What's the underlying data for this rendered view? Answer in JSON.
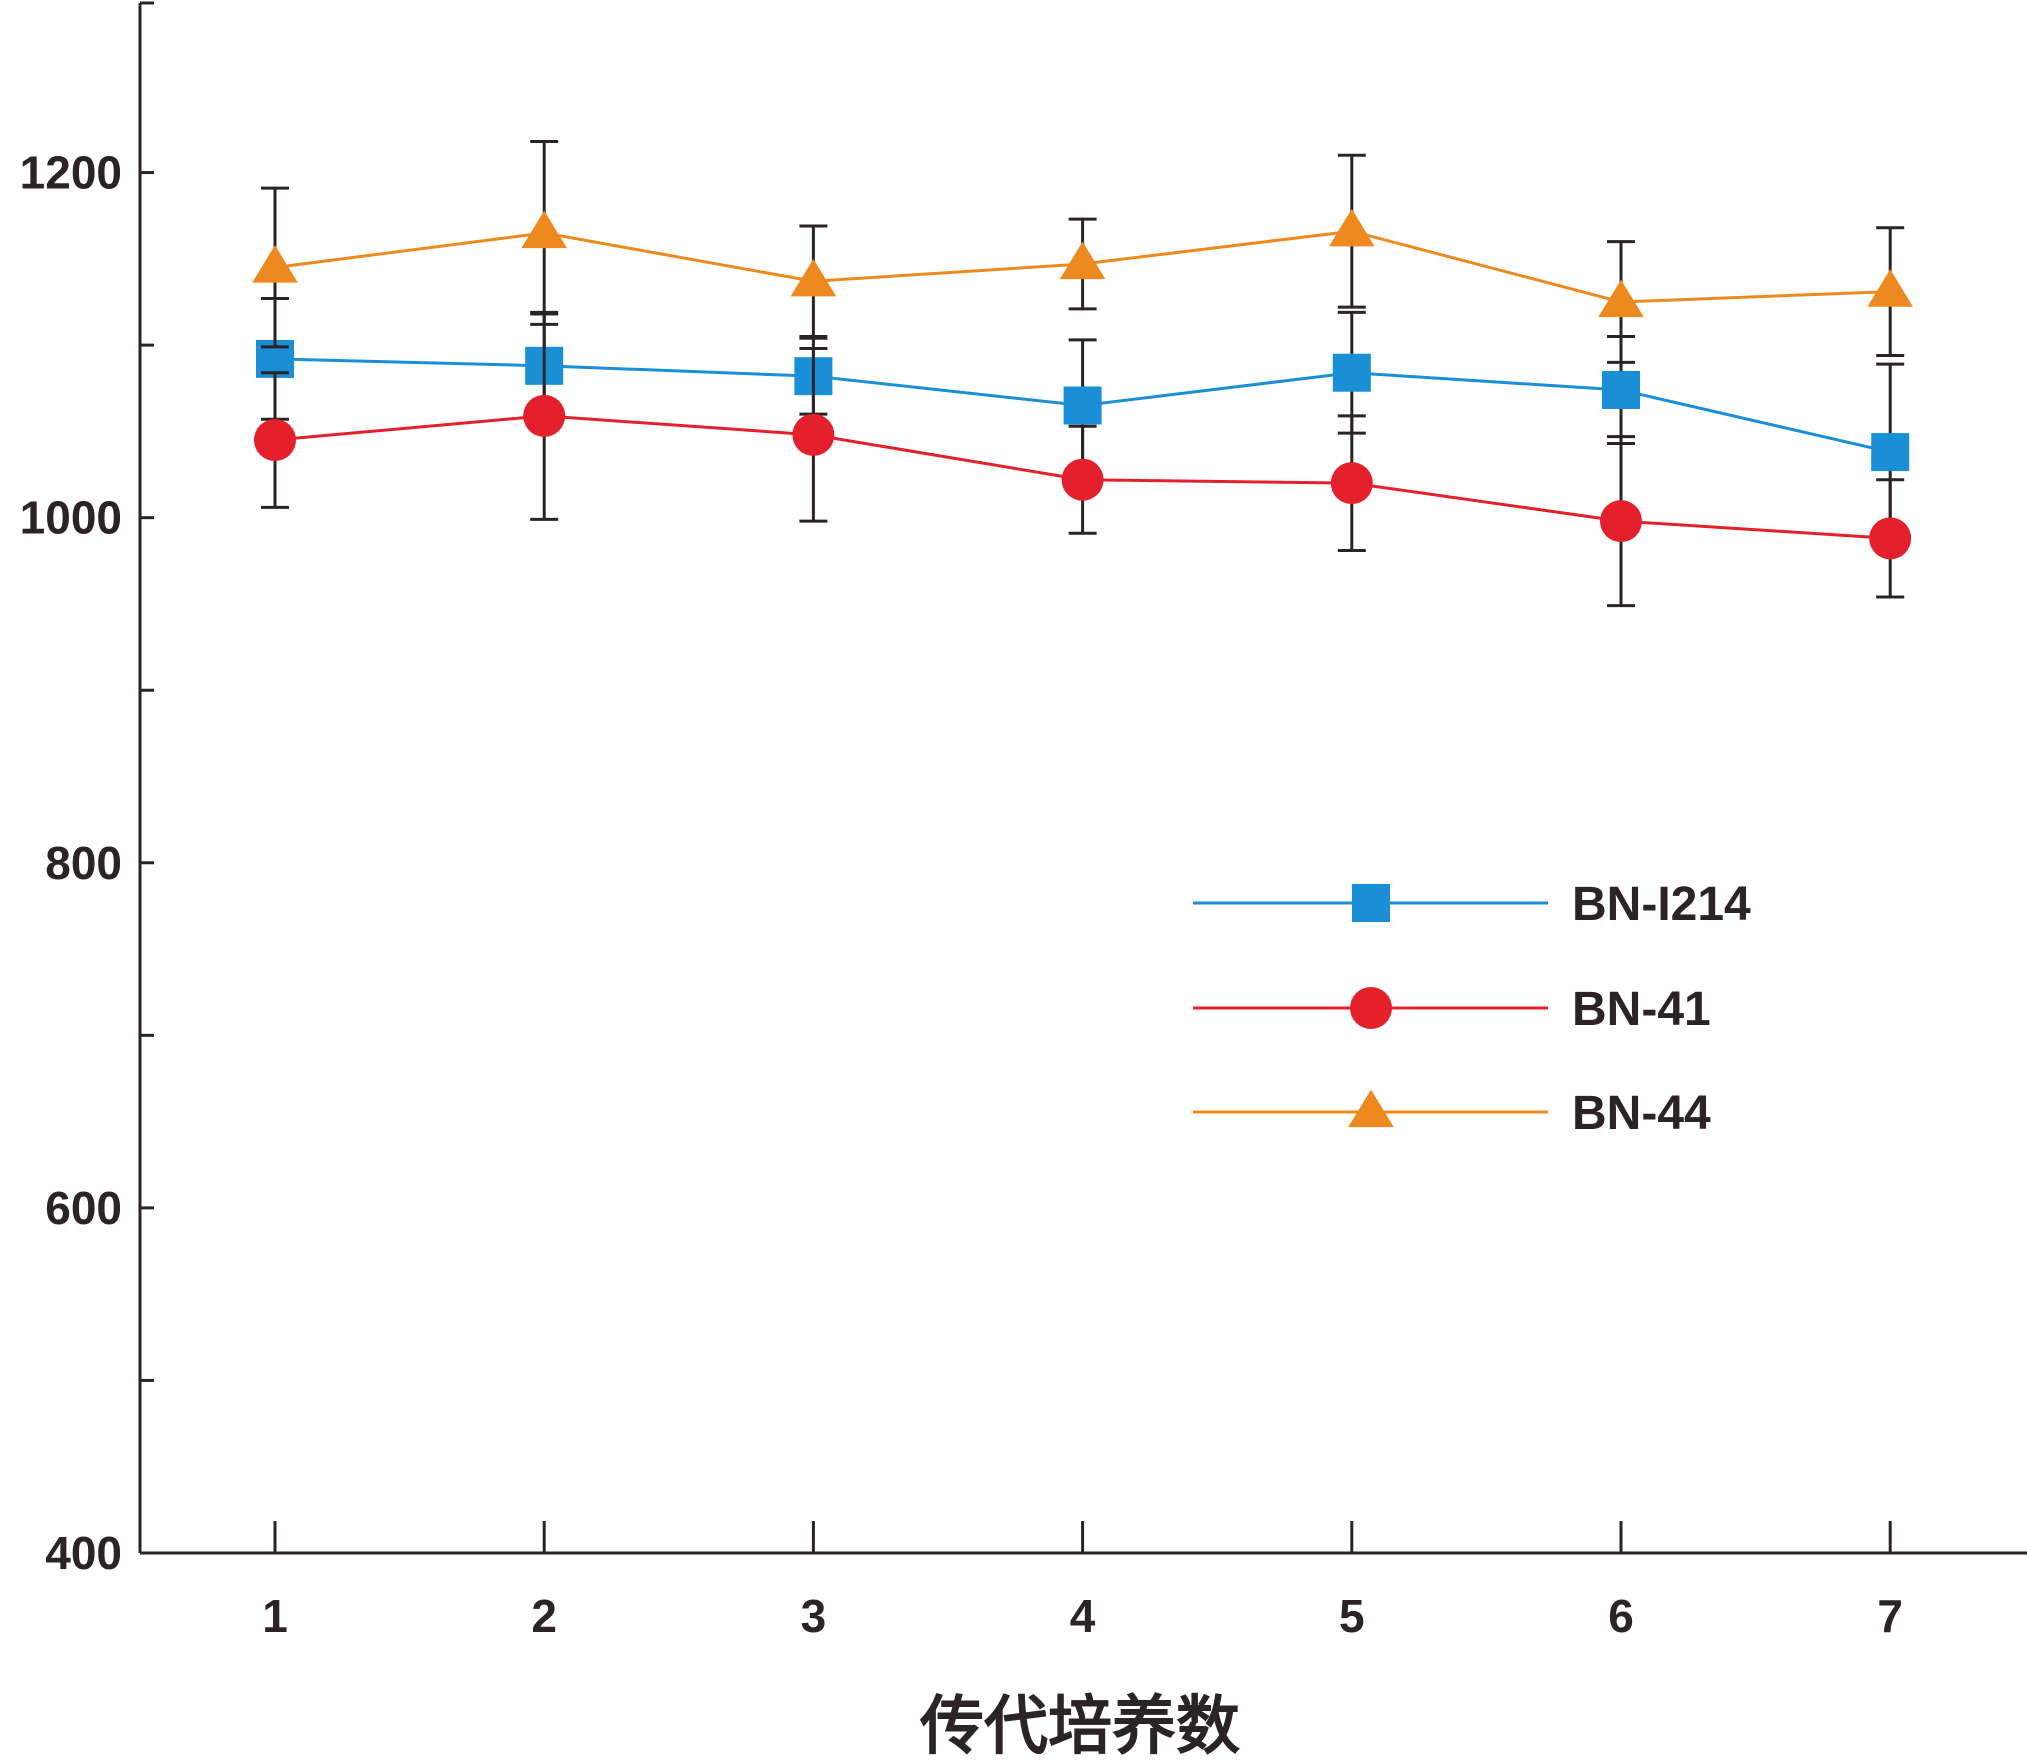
{
  "chart_data": {
    "type": "line",
    "title": "",
    "xlabel": "传代培养数",
    "ylabel": "",
    "categories": [
      "1",
      "2",
      "3",
      "4",
      "5",
      "6",
      "7"
    ],
    "x": [
      1,
      2,
      3,
      4,
      5,
      6,
      7
    ],
    "xlim": [
      0.5,
      7.5
    ],
    "ylim": [
      400,
      1300
    ],
    "yticks_major": [
      400,
      600,
      800,
      1000,
      1200
    ],
    "yticks_minor": [
      500,
      700,
      900,
      1100
    ],
    "grid": false,
    "legend_position": "right-center",
    "series": [
      {
        "name": "BN-I214",
        "marker": "square",
        "color": "#1a8fd6",
        "values": [
          1092,
          1088,
          1082,
          1065,
          1084,
          1074,
          1038
        ],
        "errors": [
          35,
          30,
          22,
          38,
          35,
          31,
          51
        ]
      },
      {
        "name": "BN-41",
        "marker": "circle",
        "color": "#e3202b",
        "values": [
          1045,
          1059,
          1048,
          1022,
          1020,
          998,
          988
        ],
        "errors": [
          39,
          60,
          50,
          31,
          39,
          49,
          34
        ]
      },
      {
        "name": "BN-44",
        "marker": "triangle",
        "color": "#ed8a1f",
        "values": [
          1145,
          1165,
          1137,
          1147,
          1166,
          1125,
          1131
        ],
        "errors": [
          46,
          53,
          32,
          26,
          44,
          35,
          37
        ]
      }
    ],
    "axis_color": "#2b2325"
  }
}
